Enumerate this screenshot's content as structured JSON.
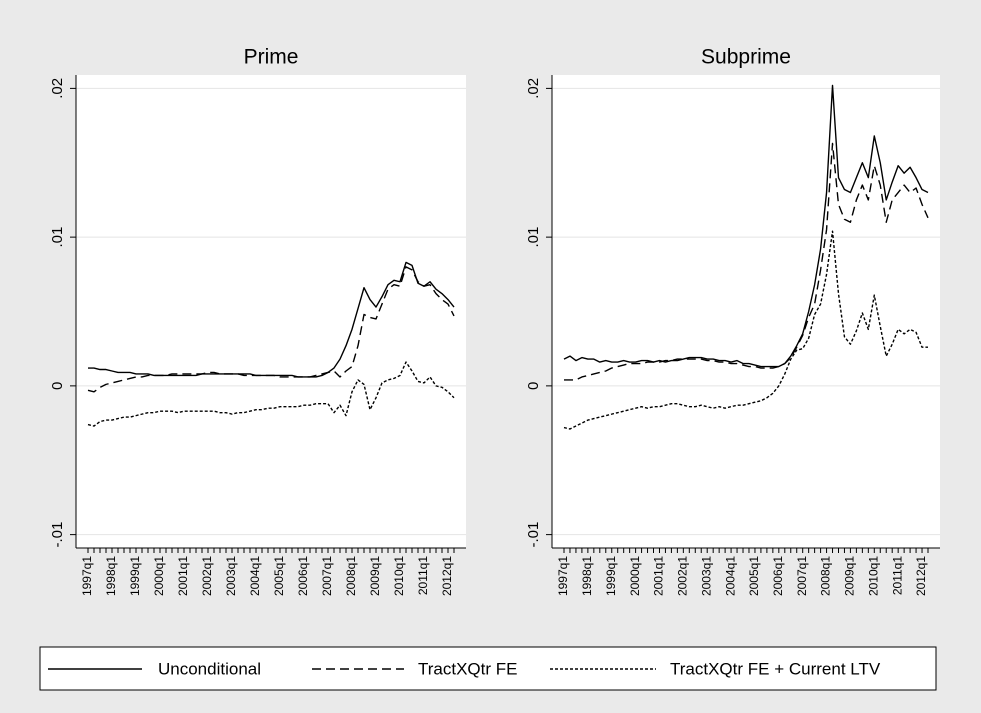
{
  "chart_data": [
    {
      "type": "line",
      "title": "Prime",
      "legend": "bottom",
      "categories": [
        "1997q1",
        null,
        null,
        null,
        "1998q1",
        null,
        null,
        null,
        "1999q1",
        null,
        null,
        null,
        "2000q1",
        null,
        null,
        null,
        "2001q1",
        null,
        null,
        null,
        "2002q1",
        null,
        null,
        null,
        "2003q1",
        null,
        null,
        null,
        "2004q1",
        null,
        null,
        null,
        "2005q1",
        null,
        null,
        null,
        "2006q1",
        null,
        null,
        null,
        "2007q1",
        null,
        null,
        null,
        "2008q1",
        null,
        null,
        null,
        "2009q1",
        null,
        null,
        null,
        "2010q1",
        null,
        null,
        null,
        "2011q1",
        null,
        null,
        null,
        "2012q1",
        null
      ],
      "ylim": [
        -0.0109,
        0.0209
      ],
      "yticks": [
        {
          "value": -0.01,
          "label": "-.01"
        },
        0,
        {
          "value": 0.01,
          "label": ".01"
        },
        {
          "value": 0.02,
          "label": ".02"
        }
      ],
      "grid": true,
      "series": [
        {
          "name": "Unconditional",
          "color": "#000000",
          "dash": "solid",
          "values": [
            0.0012,
            0.0012,
            0.0011,
            0.0011,
            0.001,
            0.0009,
            0.0009,
            0.0009,
            0.0008,
            0.0008,
            0.0008,
            0.0007,
            0.0007,
            0.0007,
            0.0007,
            0.0007,
            0.0007,
            0.0007,
            0.0007,
            0.0008,
            0.0008,
            0.0008,
            0.0008,
            0.0008,
            0.0008,
            0.0008,
            0.0008,
            0.0008,
            0.0007,
            0.0007,
            0.0007,
            0.0007,
            0.0007,
            0.0007,
            0.0007,
            0.0006,
            0.0006,
            0.0006,
            0.0006,
            0.0007,
            0.0009,
            0.0012,
            0.0018,
            0.0027,
            0.0038,
            0.0052,
            0.0066,
            0.0058,
            0.0053,
            0.006,
            0.0068,
            0.0071,
            0.007,
            0.0083,
            0.0081,
            0.0069,
            0.0067,
            0.007,
            0.0065,
            0.0062,
            0.0058,
            0.0053
          ]
        },
        {
          "name": "TractXQtr FE",
          "color": "#000000",
          "dash": "dashed",
          "values": [
            -0.0003,
            -0.0004,
            -0.0001,
            0.0001,
            0.0002,
            0.0003,
            0.0004,
            0.0005,
            0.0006,
            0.0006,
            0.0007,
            0.0007,
            0.0007,
            0.0007,
            0.0008,
            0.0008,
            0.0008,
            0.0008,
            0.0008,
            0.0008,
            0.0009,
            0.0009,
            0.0008,
            0.0008,
            0.0008,
            0.0008,
            0.0007,
            0.0007,
            0.0007,
            0.0007,
            0.0007,
            0.0007,
            0.0006,
            0.0006,
            0.0006,
            0.0006,
            0.0006,
            0.0006,
            0.0007,
            0.0008,
            0.0009,
            0.001,
            0.0006,
            0.001,
            0.0013,
            0.0027,
            0.0048,
            0.0046,
            0.0045,
            0.0055,
            0.0065,
            0.0068,
            0.0067,
            0.008,
            0.0078,
            0.007,
            0.0067,
            0.0068,
            0.0062,
            0.0058,
            0.0055,
            0.0047
          ]
        },
        {
          "name": "TractXQtr FE + Current LTV",
          "color": "#000000",
          "dash": "dotted",
          "values": [
            -0.0026,
            -0.0027,
            -0.0024,
            -0.0023,
            -0.0023,
            -0.0022,
            -0.0021,
            -0.0021,
            -0.002,
            -0.0019,
            -0.0018,
            -0.0018,
            -0.0017,
            -0.0017,
            -0.0017,
            -0.0018,
            -0.0017,
            -0.0017,
            -0.0017,
            -0.0017,
            -0.0017,
            -0.0017,
            -0.0018,
            -0.0018,
            -0.0019,
            -0.0018,
            -0.0018,
            -0.0017,
            -0.0016,
            -0.0016,
            -0.0015,
            -0.0015,
            -0.0014,
            -0.0014,
            -0.0014,
            -0.0014,
            -0.0013,
            -0.0013,
            -0.0012,
            -0.0012,
            -0.0012,
            -0.0018,
            -0.0013,
            -0.002,
            -0.0004,
            0.0004,
            0.0001,
            -0.0016,
            -0.0008,
            0.0002,
            0.0004,
            0.0005,
            0.0007,
            0.0016,
            0.001,
            0.0003,
            0.0002,
            0.0006,
            0.0,
            -0.0001,
            -0.0004,
            -0.0008
          ]
        }
      ]
    },
    {
      "type": "line",
      "title": "Subprime",
      "categories": [
        "1997q1",
        null,
        null,
        null,
        "1998q1",
        null,
        null,
        null,
        "1999q1",
        null,
        null,
        null,
        "2000q1",
        null,
        null,
        null,
        "2001q1",
        null,
        null,
        null,
        "2002q1",
        null,
        null,
        null,
        "2003q1",
        null,
        null,
        null,
        "2004q1",
        null,
        null,
        null,
        "2005q1",
        null,
        null,
        null,
        "2006q1",
        null,
        null,
        null,
        "2007q1",
        null,
        null,
        null,
        "2008q1",
        null,
        null,
        null,
        "2009q1",
        null,
        null,
        null,
        "2010q1",
        null,
        null,
        null,
        "2011q1",
        null,
        null,
        null,
        "2012q1",
        null
      ],
      "ylim": [
        -0.0109,
        0.0209
      ],
      "yticks": [
        {
          "value": -0.01,
          "label": "-.01"
        },
        0,
        {
          "value": 0.01,
          "label": ".01"
        },
        {
          "value": 0.02,
          "label": ".02"
        }
      ],
      "grid": true,
      "series": [
        {
          "color": "#000000",
          "dash": "solid",
          "values": [
            0.0018,
            0.002,
            0.0017,
            0.0019,
            0.0018,
            0.0018,
            0.0016,
            0.0017,
            0.0016,
            0.0016,
            0.0017,
            0.0016,
            0.0016,
            0.0017,
            0.0017,
            0.0016,
            0.0017,
            0.0016,
            0.0017,
            0.0017,
            0.0018,
            0.0019,
            0.0019,
            0.0019,
            0.0018,
            0.0018,
            0.0017,
            0.0017,
            0.0016,
            0.0017,
            0.0015,
            0.0015,
            0.0014,
            0.0013,
            0.0013,
            0.0013,
            0.0013,
            0.0015,
            0.002,
            0.0027,
            0.0035,
            0.005,
            0.0068,
            0.0092,
            0.013,
            0.0202,
            0.014,
            0.0132,
            0.013,
            0.014,
            0.015,
            0.014,
            0.0168,
            0.015,
            0.0125,
            0.0137,
            0.0148,
            0.0143,
            0.0147,
            0.014,
            0.0132,
            0.013
          ]
        },
        {
          "color": "#000000",
          "dash": "dashed",
          "values": [
            0.0004,
            0.0004,
            0.0004,
            0.0006,
            0.0007,
            0.0008,
            0.0009,
            0.001,
            0.0012,
            0.0013,
            0.0014,
            0.0015,
            0.0015,
            0.0015,
            0.0016,
            0.0016,
            0.0016,
            0.0017,
            0.0017,
            0.0018,
            0.0018,
            0.0018,
            0.0018,
            0.0018,
            0.0017,
            0.0017,
            0.0016,
            0.0016,
            0.0015,
            0.0015,
            0.0014,
            0.0013,
            0.0013,
            0.0012,
            0.0012,
            0.0012,
            0.0013,
            0.0015,
            0.0019,
            0.0026,
            0.0034,
            0.0046,
            0.0055,
            0.0078,
            0.0105,
            0.0163,
            0.0122,
            0.0112,
            0.011,
            0.0125,
            0.0135,
            0.0125,
            0.0148,
            0.0135,
            0.011,
            0.0125,
            0.013,
            0.0135,
            0.013,
            0.0133,
            0.0122,
            0.0113
          ]
        },
        {
          "color": "#000000",
          "dash": "dotted",
          "values": [
            -0.0028,
            -0.0029,
            -0.0027,
            -0.0025,
            -0.0023,
            -0.0022,
            -0.0021,
            -0.002,
            -0.0019,
            -0.0018,
            -0.0017,
            -0.0016,
            -0.0015,
            -0.0014,
            -0.0015,
            -0.0014,
            -0.0014,
            -0.0013,
            -0.0012,
            -0.0012,
            -0.0013,
            -0.0014,
            -0.0014,
            -0.0013,
            -0.0014,
            -0.0015,
            -0.0014,
            -0.0015,
            -0.0014,
            -0.0013,
            -0.0013,
            -0.0012,
            -0.0011,
            -0.001,
            -0.0008,
            -0.0005,
            0.0,
            0.0008,
            0.0018,
            0.0024,
            0.0025,
            0.0032,
            0.0048,
            0.0055,
            0.0075,
            0.0104,
            0.0062,
            0.0033,
            0.0028,
            0.0037,
            0.0049,
            0.0038,
            0.0061,
            0.004,
            0.002,
            0.0028,
            0.0038,
            0.0035,
            0.0038,
            0.0036,
            0.0026,
            0.0026
          ]
        }
      ]
    }
  ]
}
